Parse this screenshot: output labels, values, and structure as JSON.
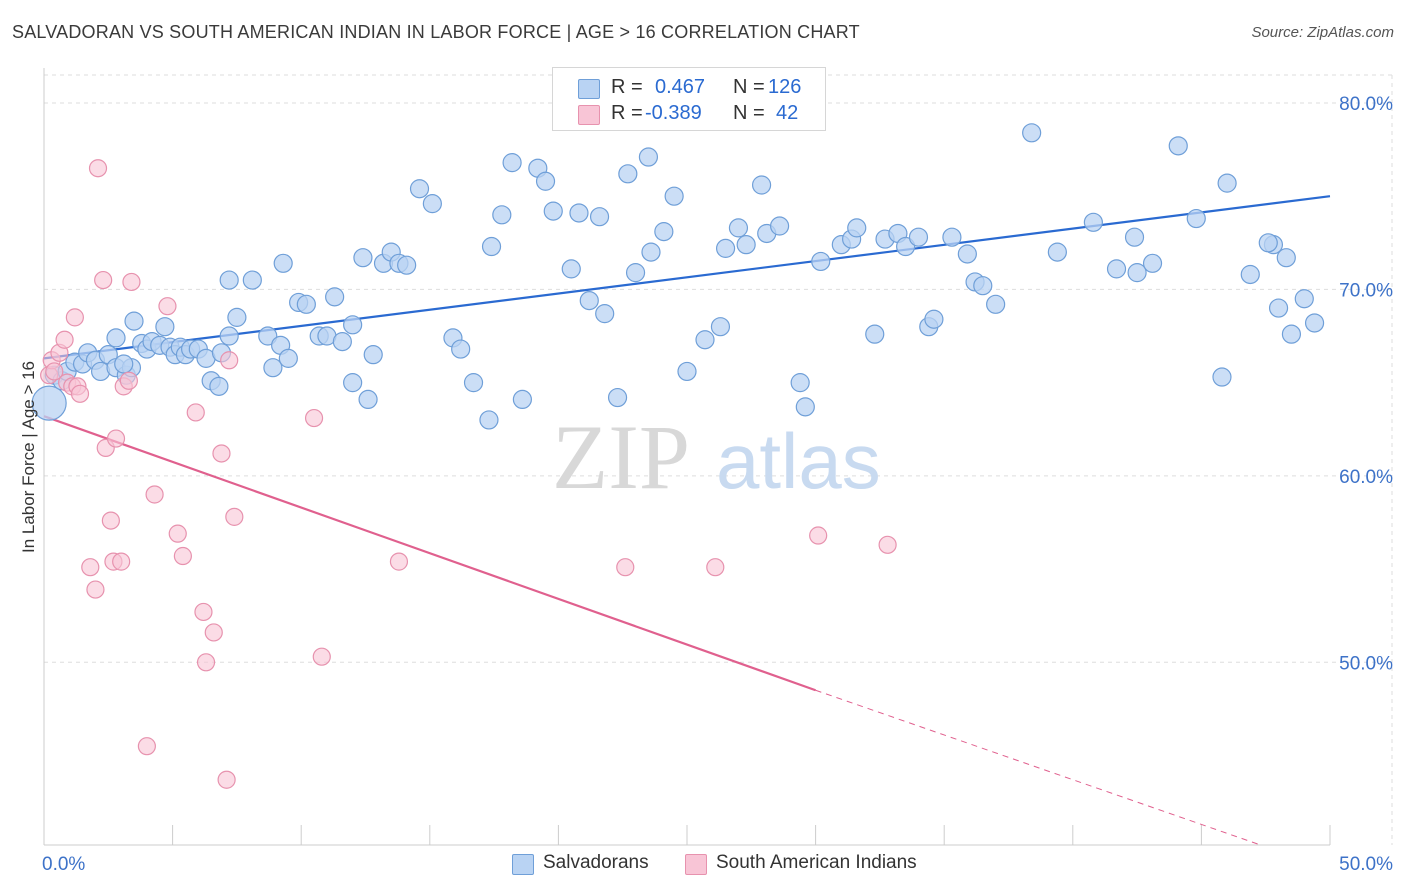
{
  "title": "SALVADORAN VS SOUTH AMERICAN INDIAN IN LABOR FORCE | AGE > 16 CORRELATION CHART",
  "source": "Source: ZipAtlas.com",
  "watermark": {
    "zip": "ZIP",
    "atlas": "atlas"
  },
  "colors": {
    "blue_fill": "#b9d3f3",
    "blue_stroke": "#6f9fd8",
    "blue_line": "#2a6ad1",
    "pink_fill": "#f8c5d6",
    "pink_stroke": "#e792ae",
    "pink_line": "#e0608e",
    "axis_label": "#3d72c8",
    "grid": "#dddddd"
  },
  "legend": {
    "rows": [
      {
        "r_label": "R =",
        "r_value": "0.467",
        "n_label": "N =",
        "n_value": "126",
        "color": "blue"
      },
      {
        "r_label": "R =",
        "r_value": "-0.389",
        "n_label": "N =",
        "n_value": "42",
        "color": "pink"
      }
    ]
  },
  "bottom_legend": [
    {
      "label": "Salvadorans",
      "color": "blue"
    },
    {
      "label": "South American Indians",
      "color": "pink"
    }
  ],
  "chart_data": {
    "type": "scatter",
    "title": "SALVADORAN VS SOUTH AMERICAN INDIAN IN LABOR FORCE | AGE > 16 CORRELATION CHART",
    "xlabel": "",
    "ylabel": "In Labor Force | Age > 16",
    "xlim": [
      0,
      50
    ],
    "ylim": [
      40.2,
      81.5
    ],
    "x_tick_labels": [
      "0.0%",
      "50.0%"
    ],
    "y_ticks": [
      50,
      60,
      70,
      80
    ],
    "y_tick_labels": [
      "50.0%",
      "60.0%",
      "70.0%",
      "80.0%"
    ],
    "grid": true,
    "series": [
      {
        "name": "Salvadorans",
        "color": "blue",
        "points": [
          [
            0.2,
            63.9
          ],
          [
            0.4,
            65.4
          ],
          [
            0.7,
            65.1
          ],
          [
            0.9,
            65.6
          ],
          [
            1.2,
            66.1
          ],
          [
            1.5,
            66.0
          ],
          [
            1.7,
            66.6
          ],
          [
            2.0,
            66.2
          ],
          [
            2.2,
            65.6
          ],
          [
            2.5,
            66.5
          ],
          [
            2.8,
            65.8
          ],
          [
            3.2,
            65.4
          ],
          [
            3.4,
            65.8
          ],
          [
            3.1,
            66.0
          ],
          [
            2.8,
            67.4
          ],
          [
            3.5,
            68.3
          ],
          [
            3.8,
            67.1
          ],
          [
            4.0,
            66.8
          ],
          [
            4.2,
            67.2
          ],
          [
            4.5,
            67.0
          ],
          [
            4.7,
            68.0
          ],
          [
            4.9,
            66.9
          ],
          [
            5.1,
            66.5
          ],
          [
            5.3,
            66.9
          ],
          [
            5.5,
            66.5
          ],
          [
            5.7,
            66.8
          ],
          [
            6.0,
            66.8
          ],
          [
            6.3,
            66.3
          ],
          [
            6.5,
            65.1
          ],
          [
            6.8,
            64.8
          ],
          [
            6.9,
            66.6
          ],
          [
            7.2,
            67.5
          ],
          [
            7.5,
            68.5
          ],
          [
            7.2,
            70.5
          ],
          [
            8.1,
            70.5
          ],
          [
            8.7,
            67.5
          ],
          [
            8.9,
            65.8
          ],
          [
            9.2,
            67.0
          ],
          [
            9.5,
            66.3
          ],
          [
            9.3,
            71.4
          ],
          [
            9.9,
            69.3
          ],
          [
            10.2,
            69.2
          ],
          [
            10.7,
            67.5
          ],
          [
            11.0,
            67.5
          ],
          [
            11.3,
            69.6
          ],
          [
            11.6,
            67.2
          ],
          [
            12.0,
            68.1
          ],
          [
            12.8,
            66.5
          ],
          [
            12.4,
            71.7
          ],
          [
            12.6,
            64.1
          ],
          [
            12.0,
            65.0
          ],
          [
            13.2,
            71.4
          ],
          [
            13.5,
            72.0
          ],
          [
            13.8,
            71.4
          ],
          [
            14.1,
            71.3
          ],
          [
            14.6,
            75.4
          ],
          [
            15.1,
            74.6
          ],
          [
            15.9,
            67.4
          ],
          [
            16.2,
            66.8
          ],
          [
            16.7,
            65.0
          ],
          [
            17.3,
            63.0
          ],
          [
            17.8,
            74.0
          ],
          [
            17.4,
            72.3
          ],
          [
            18.2,
            76.8
          ],
          [
            18.6,
            64.1
          ],
          [
            19.2,
            76.5
          ],
          [
            19.5,
            75.8
          ],
          [
            19.8,
            74.2
          ],
          [
            20.5,
            71.1
          ],
          [
            20.8,
            74.1
          ],
          [
            21.2,
            69.4
          ],
          [
            21.6,
            73.9
          ],
          [
            21.8,
            68.7
          ],
          [
            22.3,
            64.2
          ],
          [
            22.7,
            76.2
          ],
          [
            23.0,
            70.9
          ],
          [
            23.5,
            77.1
          ],
          [
            23.6,
            72.0
          ],
          [
            24.1,
            73.1
          ],
          [
            24.5,
            75.0
          ],
          [
            25.0,
            65.6
          ],
          [
            25.7,
            67.3
          ],
          [
            26.3,
            68.0
          ],
          [
            26.5,
            72.2
          ],
          [
            27.0,
            73.3
          ],
          [
            27.3,
            72.4
          ],
          [
            27.9,
            75.6
          ],
          [
            28.1,
            73.0
          ],
          [
            28.6,
            73.4
          ],
          [
            29.4,
            65.0
          ],
          [
            29.6,
            63.7
          ],
          [
            30.2,
            71.5
          ],
          [
            31.0,
            72.4
          ],
          [
            31.4,
            72.7
          ],
          [
            31.6,
            73.3
          ],
          [
            32.3,
            67.6
          ],
          [
            32.7,
            72.7
          ],
          [
            33.2,
            73.0
          ],
          [
            33.5,
            72.3
          ],
          [
            34.0,
            72.8
          ],
          [
            34.4,
            68.0
          ],
          [
            34.6,
            68.4
          ],
          [
            35.3,
            72.8
          ],
          [
            35.9,
            71.9
          ],
          [
            36.2,
            70.4
          ],
          [
            36.5,
            70.2
          ],
          [
            37.0,
            69.2
          ],
          [
            38.4,
            78.4
          ],
          [
            39.4,
            72.0
          ],
          [
            40.8,
            73.6
          ],
          [
            41.7,
            71.1
          ],
          [
            42.5,
            70.9
          ],
          [
            42.4,
            72.8
          ],
          [
            43.1,
            71.4
          ],
          [
            44.1,
            77.7
          ],
          [
            44.8,
            73.8
          ],
          [
            46.0,
            75.7
          ],
          [
            46.9,
            70.8
          ],
          [
            47.8,
            72.4
          ],
          [
            48.3,
            71.7
          ],
          [
            48.5,
            67.6
          ],
          [
            47.6,
            72.5
          ],
          [
            45.8,
            65.3
          ],
          [
            49.4,
            68.2
          ],
          [
            49.0,
            69.5
          ],
          [
            48.0,
            69.0
          ]
        ]
      },
      {
        "name": "South American Indians",
        "color": "pink",
        "points": [
          [
            0.2,
            65.4
          ],
          [
            0.3,
            66.2
          ],
          [
            0.4,
            65.6
          ],
          [
            0.6,
            66.6
          ],
          [
            0.8,
            67.3
          ],
          [
            0.9,
            65.0
          ],
          [
            1.1,
            64.8
          ],
          [
            1.3,
            64.8
          ],
          [
            1.4,
            64.4
          ],
          [
            1.2,
            68.5
          ],
          [
            1.8,
            55.1
          ],
          [
            2.0,
            53.9
          ],
          [
            2.1,
            76.5
          ],
          [
            2.3,
            70.5
          ],
          [
            2.4,
            61.5
          ],
          [
            2.6,
            57.6
          ],
          [
            2.7,
            55.4
          ],
          [
            2.8,
            62.0
          ],
          [
            3.0,
            55.4
          ],
          [
            3.1,
            64.8
          ],
          [
            3.3,
            65.1
          ],
          [
            3.4,
            70.4
          ],
          [
            4.3,
            59.0
          ],
          [
            4.8,
            69.1
          ],
          [
            5.2,
            56.9
          ],
          [
            5.4,
            55.7
          ],
          [
            5.9,
            63.4
          ],
          [
            6.2,
            52.7
          ],
          [
            6.6,
            51.6
          ],
          [
            6.9,
            61.2
          ],
          [
            7.2,
            66.2
          ],
          [
            7.4,
            57.8
          ],
          [
            4.0,
            45.5
          ],
          [
            6.3,
            50.0
          ],
          [
            7.1,
            43.7
          ],
          [
            10.5,
            63.1
          ],
          [
            10.8,
            50.3
          ],
          [
            13.8,
            55.4
          ],
          [
            22.6,
            55.1
          ],
          [
            26.1,
            55.1
          ],
          [
            30.1,
            56.8
          ],
          [
            32.8,
            56.3
          ]
        ]
      }
    ],
    "trend_lines": [
      {
        "series": "Salvadorans",
        "x": [
          0,
          50
        ],
        "y": [
          66.3,
          75.0
        ],
        "style": "solid"
      },
      {
        "series": "South American Indians",
        "x": [
          0,
          30
        ],
        "y": [
          63.2,
          48.5
        ],
        "style": "solid"
      },
      {
        "series": "South American Indians",
        "x": [
          30,
          47.3
        ],
        "y": [
          48.5,
          40.2
        ],
        "style": "dashed"
      }
    ]
  }
}
